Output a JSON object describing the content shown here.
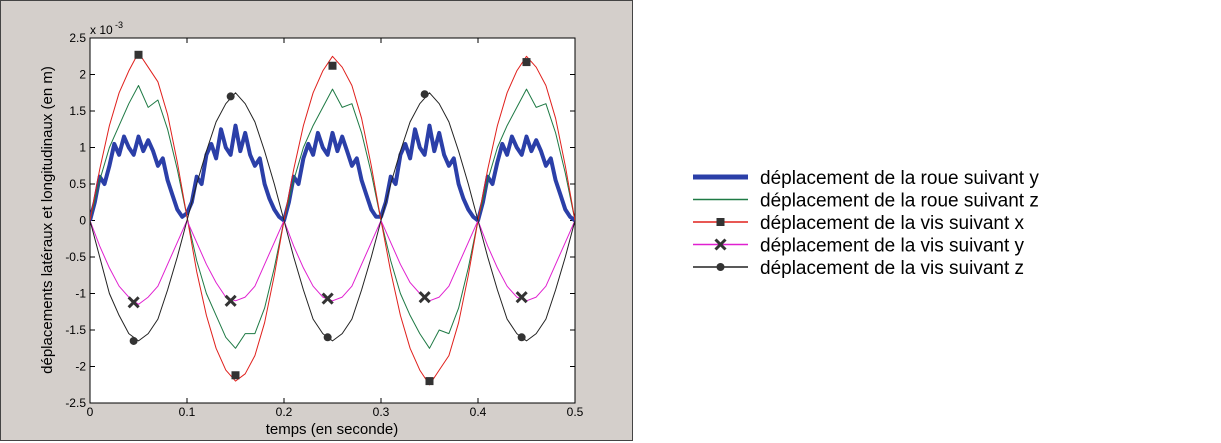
{
  "chart_data": {
    "type": "line",
    "xlabel": "temps (en seconde)",
    "ylabel": "déplacements latéraux et longitudinaux (en m)",
    "scale_note": "x 10",
    "scale_exponent": "-3",
    "xlim": [
      0,
      0.5
    ],
    "ylim": [
      -2.5,
      2.5
    ],
    "xticks": [
      "0",
      "0.1",
      "0.2",
      "0.3",
      "0.4",
      "0.5"
    ],
    "xtick_values": [
      0,
      0.1,
      0.2,
      0.3,
      0.4,
      0.5
    ],
    "yticks": [
      "-2.5",
      "-2",
      "-1.5",
      "-1",
      "-0.5",
      "0",
      "0.5",
      "1",
      "1.5",
      "2",
      "2.5"
    ],
    "ytick_values": [
      -2.5,
      -2,
      -1.5,
      -1,
      -0.5,
      0,
      0.5,
      1,
      1.5,
      2,
      2.5
    ],
    "legend_position": "right",
    "series": [
      {
        "name": "déplacement de la roue suivant y",
        "color": "#2b3fa8",
        "marker": "none",
        "width": 4,
        "x": [
          0,
          0.005,
          0.01,
          0.015,
          0.02,
          0.025,
          0.03,
          0.035,
          0.04,
          0.045,
          0.05,
          0.055,
          0.06,
          0.065,
          0.07,
          0.075,
          0.08,
          0.085,
          0.09,
          0.095,
          0.1,
          0.105,
          0.11,
          0.115,
          0.12,
          0.125,
          0.13,
          0.135,
          0.14,
          0.145,
          0.15,
          0.155,
          0.16,
          0.165,
          0.17,
          0.175,
          0.18,
          0.185,
          0.19,
          0.195,
          0.2,
          0.205,
          0.21,
          0.215,
          0.22,
          0.225,
          0.23,
          0.235,
          0.24,
          0.245,
          0.25,
          0.255,
          0.26,
          0.265,
          0.27,
          0.275,
          0.28,
          0.285,
          0.29,
          0.295,
          0.3,
          0.305,
          0.31,
          0.315,
          0.32,
          0.325,
          0.33,
          0.335,
          0.34,
          0.345,
          0.35,
          0.355,
          0.36,
          0.365,
          0.37,
          0.375,
          0.38,
          0.385,
          0.39,
          0.395,
          0.4,
          0.405,
          0.41,
          0.415,
          0.42,
          0.425,
          0.43,
          0.435,
          0.44,
          0.445,
          0.45,
          0.455,
          0.46,
          0.465,
          0.47,
          0.475,
          0.48,
          0.485,
          0.49,
          0.495,
          0.5
        ],
        "y": [
          0,
          0.25,
          0.6,
          0.5,
          0.75,
          1.05,
          0.9,
          1.15,
          1.0,
          0.9,
          1.15,
          0.95,
          1.1,
          0.95,
          0.75,
          0.85,
          0.55,
          0.35,
          0.15,
          0.05,
          0.1,
          0.25,
          0.6,
          0.5,
          0.9,
          1.05,
          0.85,
          1.25,
          1.0,
          0.9,
          1.3,
          0.95,
          1.2,
          0.9,
          0.75,
          0.85,
          0.5,
          0.3,
          0.15,
          0.05,
          0.0,
          0.25,
          0.6,
          0.5,
          0.85,
          1.05,
          0.9,
          1.2,
          1.0,
          0.9,
          1.2,
          0.95,
          1.15,
          0.95,
          0.75,
          0.85,
          0.55,
          0.35,
          0.15,
          0.05,
          0.05,
          0.25,
          0.6,
          0.5,
          0.9,
          1.05,
          0.85,
          1.25,
          1.0,
          0.9,
          1.3,
          0.95,
          1.2,
          0.9,
          0.75,
          0.85,
          0.5,
          0.3,
          0.15,
          0.05,
          0.0,
          0.25,
          0.6,
          0.5,
          0.8,
          1.05,
          0.9,
          1.15,
          1.0,
          0.9,
          1.15,
          0.95,
          1.1,
          0.95,
          0.75,
          0.85,
          0.55,
          0.35,
          0.15,
          0.05,
          0.0
        ]
      },
      {
        "name": "déplacement de la roue suivant z",
        "color": "#1f7a45",
        "marker": "none",
        "width": 1,
        "x": [
          0,
          0.01,
          0.02,
          0.03,
          0.04,
          0.05,
          0.06,
          0.07,
          0.08,
          0.09,
          0.1,
          0.11,
          0.12,
          0.13,
          0.14,
          0.15,
          0.16,
          0.17,
          0.18,
          0.19,
          0.2,
          0.21,
          0.22,
          0.23,
          0.24,
          0.25,
          0.26,
          0.27,
          0.28,
          0.29,
          0.3,
          0.31,
          0.32,
          0.33,
          0.34,
          0.35,
          0.36,
          0.37,
          0.38,
          0.39,
          0.4,
          0.41,
          0.42,
          0.43,
          0.44,
          0.45,
          0.46,
          0.47,
          0.48,
          0.49,
          0.5
        ],
        "y": [
          0,
          0.55,
          1.0,
          1.3,
          1.6,
          1.85,
          1.55,
          1.65,
          1.25,
          0.7,
          0.05,
          -0.55,
          -1.0,
          -1.3,
          -1.6,
          -1.75,
          -1.55,
          -1.55,
          -1.2,
          -0.65,
          0.0,
          0.55,
          1.0,
          1.3,
          1.55,
          1.8,
          1.55,
          1.6,
          1.2,
          0.65,
          0.0,
          -0.55,
          -1.0,
          -1.3,
          -1.55,
          -1.75,
          -1.5,
          -1.55,
          -1.2,
          -0.65,
          0.0,
          0.55,
          1.0,
          1.3,
          1.55,
          1.8,
          1.55,
          1.6,
          1.2,
          0.65,
          0.0
        ]
      },
      {
        "name": "déplacement de la vis suivant x",
        "color": "#e0201c",
        "marker": "square",
        "width": 1,
        "x": [
          0,
          0.01,
          0.02,
          0.03,
          0.04,
          0.05,
          0.06,
          0.07,
          0.08,
          0.09,
          0.1,
          0.11,
          0.12,
          0.13,
          0.14,
          0.15,
          0.16,
          0.17,
          0.18,
          0.19,
          0.2,
          0.21,
          0.22,
          0.23,
          0.24,
          0.25,
          0.26,
          0.27,
          0.28,
          0.29,
          0.3,
          0.31,
          0.32,
          0.33,
          0.34,
          0.35,
          0.36,
          0.37,
          0.38,
          0.39,
          0.4,
          0.41,
          0.42,
          0.43,
          0.44,
          0.45,
          0.46,
          0.47,
          0.48,
          0.49,
          0.5
        ],
        "y": [
          0,
          0.7,
          1.3,
          1.75,
          2.05,
          2.3,
          2.1,
          1.9,
          1.45,
          0.8,
          0.05,
          -0.7,
          -1.3,
          -1.75,
          -2.05,
          -2.2,
          -2.1,
          -1.85,
          -1.4,
          -0.75,
          0.0,
          0.7,
          1.3,
          1.75,
          2.05,
          2.25,
          2.1,
          1.85,
          1.4,
          0.75,
          0.0,
          -0.7,
          -1.3,
          -1.75,
          -2.05,
          -2.25,
          -2.05,
          -1.85,
          -1.4,
          -0.75,
          0.0,
          0.7,
          1.3,
          1.75,
          2.05,
          2.25,
          2.1,
          1.85,
          1.4,
          0.75,
          0.0
        ],
        "markers_x": [
          0.05,
          0.15,
          0.25,
          0.35,
          0.45
        ],
        "markers_y": [
          2.27,
          -2.12,
          2.12,
          -2.2,
          2.17
        ]
      },
      {
        "name": "déplacement de la vis suivant y",
        "color": "#e020d0",
        "marker": "x",
        "width": 1,
        "x": [
          0,
          0.01,
          0.02,
          0.03,
          0.04,
          0.05,
          0.06,
          0.07,
          0.08,
          0.09,
          0.1,
          0.11,
          0.12,
          0.13,
          0.14,
          0.15,
          0.16,
          0.17,
          0.18,
          0.19,
          0.2,
          0.21,
          0.22,
          0.23,
          0.24,
          0.25,
          0.26,
          0.27,
          0.28,
          0.29,
          0.3,
          0.31,
          0.32,
          0.33,
          0.34,
          0.35,
          0.36,
          0.37,
          0.38,
          0.39,
          0.4,
          0.41,
          0.42,
          0.43,
          0.44,
          0.45,
          0.46,
          0.47,
          0.48,
          0.49,
          0.5
        ],
        "y": [
          0,
          -0.35,
          -0.65,
          -0.9,
          -1.05,
          -1.15,
          -1.05,
          -0.9,
          -0.6,
          -0.3,
          0.0,
          -0.3,
          -0.6,
          -0.85,
          -1.05,
          -1.1,
          -1.05,
          -0.9,
          -0.6,
          -0.3,
          0.0,
          -0.35,
          -0.65,
          -0.9,
          -1.05,
          -1.1,
          -1.05,
          -0.9,
          -0.6,
          -0.3,
          0.0,
          -0.3,
          -0.6,
          -0.85,
          -1.0,
          -1.1,
          -1.05,
          -0.9,
          -0.6,
          -0.3,
          0.0,
          -0.35,
          -0.65,
          -0.9,
          -1.05,
          -1.1,
          -1.05,
          -0.9,
          -0.6,
          -0.3,
          0.0
        ],
        "markers_x": [
          0.045,
          0.145,
          0.245,
          0.345,
          0.445
        ],
        "markers_y": [
          -1.12,
          -1.1,
          -1.07,
          -1.05,
          -1.05
        ]
      },
      {
        "name": "déplacement de la vis suivant z",
        "color": "#222222",
        "marker": "circle",
        "width": 1,
        "x": [
          0,
          0.01,
          0.02,
          0.03,
          0.04,
          0.05,
          0.06,
          0.07,
          0.08,
          0.09,
          0.1,
          0.11,
          0.12,
          0.13,
          0.14,
          0.15,
          0.16,
          0.17,
          0.18,
          0.19,
          0.2,
          0.21,
          0.22,
          0.23,
          0.24,
          0.25,
          0.26,
          0.27,
          0.28,
          0.29,
          0.3,
          0.31,
          0.32,
          0.33,
          0.34,
          0.35,
          0.36,
          0.37,
          0.38,
          0.39,
          0.4,
          0.41,
          0.42,
          0.43,
          0.44,
          0.45,
          0.46,
          0.47,
          0.48,
          0.49,
          0.5
        ],
        "y": [
          0,
          -0.5,
          -1.0,
          -1.3,
          -1.55,
          -1.65,
          -1.55,
          -1.35,
          -0.95,
          -0.5,
          0.0,
          0.5,
          0.95,
          1.35,
          1.6,
          1.75,
          1.6,
          1.35,
          0.95,
          0.5,
          0.0,
          -0.5,
          -0.95,
          -1.35,
          -1.55,
          -1.65,
          -1.55,
          -1.35,
          -0.95,
          -0.5,
          0.0,
          0.5,
          0.95,
          1.35,
          1.6,
          1.75,
          1.6,
          1.35,
          0.95,
          0.5,
          0.0,
          -0.5,
          -0.95,
          -1.35,
          -1.55,
          -1.65,
          -1.55,
          -1.35,
          -0.95,
          -0.5,
          0.0
        ],
        "markers_x": [
          0.045,
          0.145,
          0.245,
          0.345,
          0.445
        ],
        "markers_y": [
          -1.65,
          1.7,
          -1.6,
          1.73,
          -1.6
        ]
      }
    ]
  }
}
